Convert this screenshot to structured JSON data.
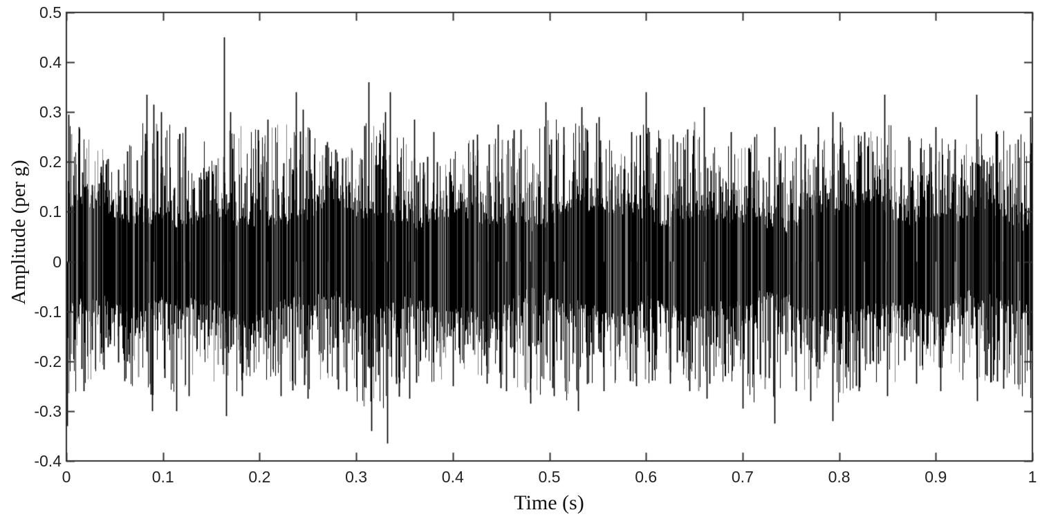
{
  "figure": {
    "background": "#ffffff",
    "axis_color": "#2e2e2e",
    "tick_text_color": "#222222",
    "label_text_color": "#111111"
  },
  "chart_data": {
    "type": "line",
    "subtype": "dense-noise-waveform",
    "title": "",
    "xlabel": "Time (s)",
    "ylabel": "Amplitude (per g)",
    "xlim": [
      0,
      1
    ],
    "ylim": [
      -0.4,
      0.5
    ],
    "grid": false,
    "legend": null,
    "line_color": "#000000",
    "xticks": {
      "values": [
        0,
        0.1,
        0.2,
        0.3,
        0.4,
        0.5,
        0.6,
        0.7,
        0.8,
        0.9,
        1
      ],
      "labels": [
        "0",
        "0.1",
        "0.2",
        "0.3",
        "0.4",
        "0.5",
        "0.6",
        "0.7",
        "0.8",
        "0.9",
        "1"
      ]
    },
    "yticks": {
      "values": [
        0.5,
        0.4,
        0.3,
        0.2,
        0.1,
        0,
        -0.1,
        -0.2,
        -0.3,
        -0.4
      ],
      "labels": [
        "0.5",
        "0.4",
        "0.3",
        "0.2",
        "0.1",
        "0",
        "-0.1",
        "-0.2",
        "-0.3",
        "-0.4"
      ]
    },
    "envelope": {
      "t_step": 0.025,
      "upper": [
        0.3,
        0.26,
        0.2,
        0.28,
        0.31,
        0.27,
        0.26,
        0.29,
        0.29,
        0.3,
        0.29,
        0.25,
        0.28,
        0.3,
        0.26,
        0.22,
        0.24,
        0.26,
        0.28,
        0.26,
        0.31,
        0.3,
        0.29,
        0.23,
        0.3,
        0.26,
        0.29,
        0.24,
        0.26,
        0.27,
        0.25,
        0.28,
        0.28,
        0.26,
        0.3,
        0.25,
        0.27,
        0.24,
        0.3,
        0.26,
        0.29
      ],
      "lower": [
        -0.31,
        -0.25,
        -0.22,
        -0.28,
        -0.29,
        -0.27,
        -0.26,
        -0.28,
        -0.26,
        -0.27,
        -0.28,
        -0.26,
        -0.3,
        -0.32,
        -0.28,
        -0.26,
        -0.25,
        -0.24,
        -0.26,
        -0.28,
        -0.27,
        -0.29,
        -0.26,
        -0.25,
        -0.26,
        -0.24,
        -0.27,
        -0.26,
        -0.29,
        -0.3,
        -0.26,
        -0.28,
        -0.3,
        -0.26,
        -0.27,
        -0.24,
        -0.26,
        -0.25,
        -0.27,
        -0.26,
        -0.3
      ]
    },
    "core_band": {
      "half_width": 0.078,
      "slow_variation": 0.022,
      "jitter": 0.02
    },
    "peaks_positive": [
      [
        0.002,
        0.295
      ],
      [
        0.013,
        0.27
      ],
      [
        0.083,
        0.335
      ],
      [
        0.09,
        0.315
      ],
      [
        0.098,
        0.3
      ],
      [
        0.123,
        0.27
      ],
      [
        0.163,
        0.45
      ],
      [
        0.17,
        0.3
      ],
      [
        0.208,
        0.285
      ],
      [
        0.238,
        0.34
      ],
      [
        0.245,
        0.305
      ],
      [
        0.27,
        0.24
      ],
      [
        0.313,
        0.36
      ],
      [
        0.33,
        0.3
      ],
      [
        0.335,
        0.34
      ],
      [
        0.36,
        0.285
      ],
      [
        0.38,
        0.26
      ],
      [
        0.425,
        0.255
      ],
      [
        0.447,
        0.275
      ],
      [
        0.47,
        0.265
      ],
      [
        0.496,
        0.32
      ],
      [
        0.515,
        0.27
      ],
      [
        0.533,
        0.31
      ],
      [
        0.551,
        0.29
      ],
      [
        0.585,
        0.26
      ],
      [
        0.6,
        0.34
      ],
      [
        0.628,
        0.255
      ],
      [
        0.66,
        0.31
      ],
      [
        0.688,
        0.26
      ],
      [
        0.712,
        0.25
      ],
      [
        0.733,
        0.27
      ],
      [
        0.76,
        0.255
      ],
      [
        0.778,
        0.27
      ],
      [
        0.793,
        0.3
      ],
      [
        0.801,
        0.28
      ],
      [
        0.826,
        0.26
      ],
      [
        0.847,
        0.335
      ],
      [
        0.872,
        0.25
      ],
      [
        0.9,
        0.27
      ],
      [
        0.92,
        0.245
      ],
      [
        0.942,
        0.335
      ],
      [
        0.962,
        0.26
      ],
      [
        0.985,
        0.245
      ],
      [
        0.998,
        0.29
      ]
    ],
    "peaks_negative": [
      [
        0.001,
        -0.33
      ],
      [
        0.018,
        -0.26
      ],
      [
        0.06,
        -0.24
      ],
      [
        0.089,
        -0.3
      ],
      [
        0.114,
        -0.3
      ],
      [
        0.127,
        -0.27
      ],
      [
        0.165,
        -0.31
      ],
      [
        0.182,
        -0.27
      ],
      [
        0.222,
        -0.27
      ],
      [
        0.25,
        -0.275
      ],
      [
        0.29,
        -0.26
      ],
      [
        0.316,
        -0.34
      ],
      [
        0.332,
        -0.365
      ],
      [
        0.355,
        -0.275
      ],
      [
        0.4,
        -0.25
      ],
      [
        0.435,
        -0.245
      ],
      [
        0.455,
        -0.26
      ],
      [
        0.48,
        -0.285
      ],
      [
        0.505,
        -0.27
      ],
      [
        0.53,
        -0.3
      ],
      [
        0.556,
        -0.26
      ],
      [
        0.59,
        -0.25
      ],
      [
        0.625,
        -0.245
      ],
      [
        0.645,
        -0.26
      ],
      [
        0.663,
        -0.275
      ],
      [
        0.7,
        -0.295
      ],
      [
        0.733,
        -0.325
      ],
      [
        0.755,
        -0.26
      ],
      [
        0.77,
        -0.28
      ],
      [
        0.793,
        -0.32
      ],
      [
        0.82,
        -0.26
      ],
      [
        0.85,
        -0.27
      ],
      [
        0.88,
        -0.245
      ],
      [
        0.905,
        -0.26
      ],
      [
        0.943,
        -0.28
      ],
      [
        0.97,
        -0.255
      ],
      [
        0.999,
        -0.3
      ]
    ],
    "noise_seed": 1337
  }
}
